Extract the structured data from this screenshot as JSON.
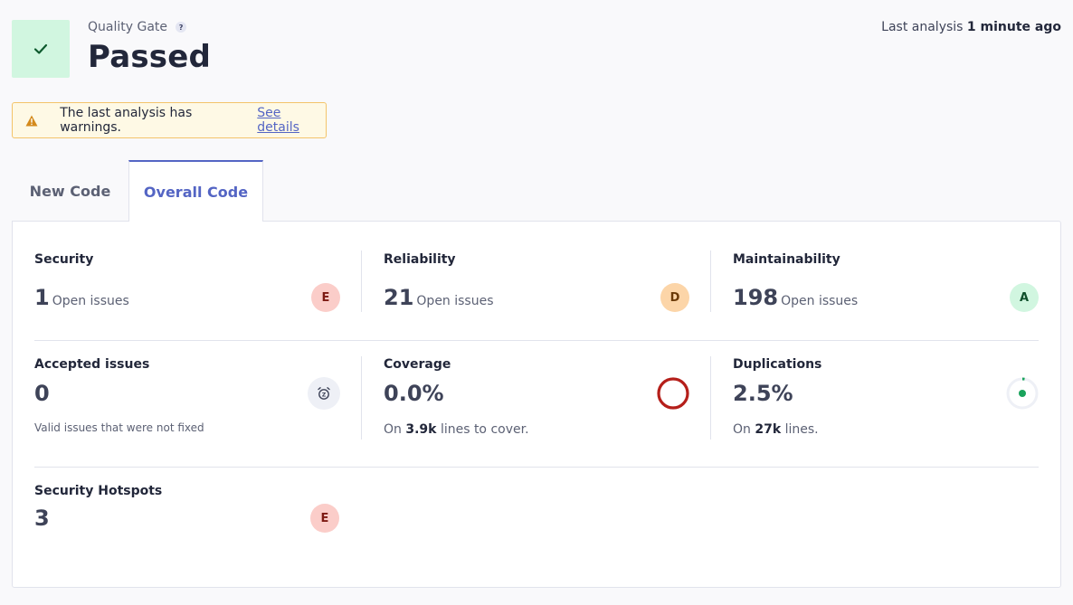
{
  "quality_gate": {
    "label": "Quality Gate",
    "help_icon": "?",
    "status": "Passed",
    "status_icon": "check-icon",
    "status_color": "#d1f6e0"
  },
  "last_analysis": {
    "prefix": "Last analysis",
    "value": "1 minute ago"
  },
  "warning": {
    "text": "The last analysis has warnings.",
    "link": "See details"
  },
  "tabs": [
    {
      "label": "New Code",
      "active": false
    },
    {
      "label": "Overall Code",
      "active": true
    }
  ],
  "metrics": {
    "security": {
      "title": "Security",
      "value": "1",
      "sub": "Open issues",
      "rating": "E"
    },
    "reliability": {
      "title": "Reliability",
      "value": "21",
      "sub": "Open issues",
      "rating": "D"
    },
    "maintainability": {
      "title": "Maintainability",
      "value": "198",
      "sub": "Open issues",
      "rating": "A"
    },
    "accepted": {
      "title": "Accepted issues",
      "value": "0",
      "note": "Valid issues that were not fixed",
      "icon": "alarm-clock-icon"
    },
    "coverage": {
      "title": "Coverage",
      "value": "0.0%",
      "note_prefix": "On",
      "note_value": "3.9k",
      "note_suffix": "lines to cover."
    },
    "duplications": {
      "title": "Duplications",
      "value": "2.5%",
      "note_prefix": "On",
      "note_value": "27k",
      "note_suffix": "lines."
    },
    "hotspots": {
      "title": "Security Hotspots",
      "value": "3",
      "rating": "E"
    }
  },
  "colors": {
    "accent": "#5465c4",
    "rating_e": "#fbcdc9",
    "rating_d": "#fcd5a8",
    "rating_a": "#d1f6e0",
    "coverage_ring": "#b51f1a",
    "duplication_dot": "#1aa35c"
  }
}
